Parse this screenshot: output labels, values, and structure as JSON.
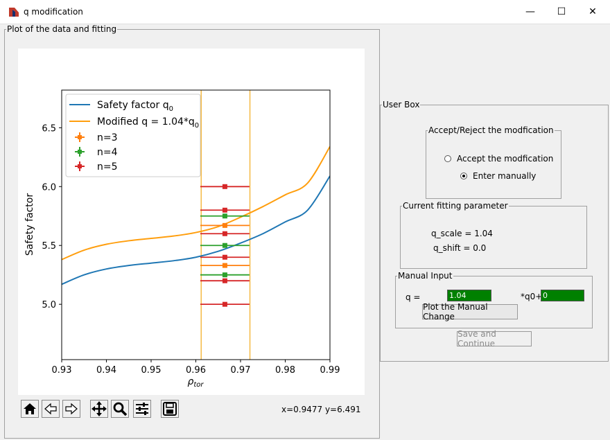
{
  "window": {
    "title": "q modification",
    "minimize": "—",
    "maximize": "☐",
    "close": "✕",
    "icon": "app-logo-icon"
  },
  "plot_frame": {
    "legend": "Plot of the data and fitting"
  },
  "chart_data": {
    "type": "line",
    "xlabel": "ρtor",
    "ylabel": "Safety factor",
    "xlim": [
      0.93,
      0.99
    ],
    "ylim": [
      4.53,
      6.82
    ],
    "xticks": [
      "0.93",
      "0.94",
      "0.95",
      "0.96",
      "0.97",
      "0.98",
      "0.99"
    ],
    "yticks": [
      "5.0",
      "5.5",
      "6.0",
      "6.5"
    ],
    "series": [
      {
        "name": "Safety factor q0",
        "color": "#1f77b4",
        "x": [
          0.93,
          0.935,
          0.94,
          0.945,
          0.95,
          0.955,
          0.96,
          0.965,
          0.97,
          0.975,
          0.98,
          0.985,
          0.99
        ],
        "y": [
          5.17,
          5.25,
          5.3,
          5.33,
          5.35,
          5.37,
          5.4,
          5.45,
          5.52,
          5.6,
          5.7,
          5.8,
          6.09
        ]
      },
      {
        "name": "Modified q = 1.04*q0",
        "color": "#ff9e0d",
        "x": [
          0.93,
          0.935,
          0.94,
          0.945,
          0.95,
          0.955,
          0.96,
          0.965,
          0.97,
          0.975,
          0.98,
          0.985,
          0.99
        ],
        "y": [
          5.38,
          5.46,
          5.51,
          5.54,
          5.56,
          5.58,
          5.61,
          5.66,
          5.74,
          5.83,
          5.93,
          6.03,
          6.34
        ]
      }
    ],
    "vlines": [
      0.9612,
      0.9721
    ],
    "vline_color": "#f5b944",
    "markers": [
      {
        "name": "n=3",
        "color": "#ff7f0e",
        "x": 0.9665,
        "xerr": 0.0055,
        "y": [
          5.33,
          5.67
        ]
      },
      {
        "name": "n=4",
        "color": "#2ca02c",
        "x": 0.9665,
        "xerr": 0.0055,
        "y": [
          5.25,
          5.5,
          5.75
        ]
      },
      {
        "name": "n=5",
        "color": "#d62728",
        "x": 0.9665,
        "xerr": 0.0055,
        "y": [
          5.0,
          5.2,
          5.4,
          5.6,
          5.8,
          6.0
        ]
      }
    ],
    "legend_position": "upper-left"
  },
  "legend": {
    "q0": "Safety factor q",
    "q0_sub": "0",
    "mod": "Modified q = 1.04*q",
    "mod_sub": "0",
    "n3": "n=3",
    "n4": "n=4",
    "n5": "n=5"
  },
  "xlabel_parts": {
    "main": "ρ",
    "sub": "tor"
  },
  "ylabel": "Safety factor",
  "toolbar": {
    "icons": [
      "home-icon",
      "back-icon",
      "forward-icon",
      "pan-icon",
      "zoom-icon",
      "configure-subplots-icon",
      "save-icon"
    ],
    "coords": "x=0.9477 y=6.491"
  },
  "user_box": {
    "legend": "User Box",
    "accept_group": {
      "legend": "Accept/Reject the modfication",
      "accept_label": "Accept the modfication",
      "manual_label": "Enter manually",
      "selected": "manual"
    },
    "current_params": {
      "legend": "Current fitting parameter",
      "q_scale": "q_scale = 1.04",
      "q_shift": "q_shift = 0.0"
    },
    "manual_input": {
      "legend": "Manual Input",
      "q_label": "q =",
      "q_value": "1.04",
      "q0_label": "*q0+",
      "shift_value": "0",
      "plot_button": "Plot the Manual Change"
    },
    "save_button": "Save and Continue"
  }
}
